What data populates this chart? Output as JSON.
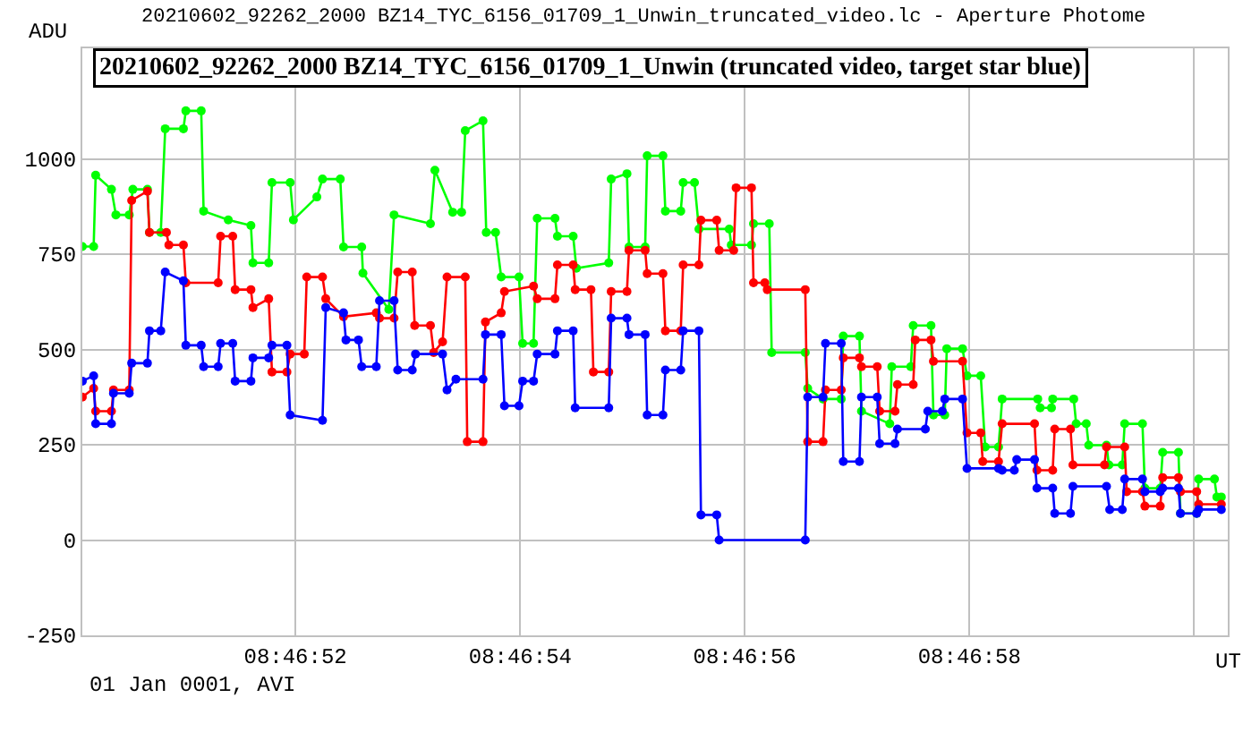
{
  "chart_data": {
    "type": "line",
    "title": "20210602_92262_2000 BZ14_TYC_6156_01709_1_Unwin (truncated video, target star blue)",
    "subtitle": "20210602_92262_2000 BZ14_TYC_6156_01709_1_Unwin_truncated_video.lc - Aperture Photome",
    "xlabel": "UT",
    "ylabel": "ADU",
    "annotations": [
      "01 Jan 0001, AVI"
    ],
    "xlim": [
      8.780584,
      8.783417
    ],
    "xticks": [
      {
        "value": 8.781111,
        "label": "08:46:52"
      },
      {
        "value": 8.781667,
        "label": "08:46:54"
      },
      {
        "value": 8.782222,
        "label": "08:46:56"
      },
      {
        "value": 8.782778,
        "label": "08:46:58"
      },
      {
        "value": 8.783333,
        "label": null
      }
    ],
    "ylim": [
      -250,
      1290
    ],
    "yticks": [
      -250,
      0,
      250,
      500,
      750,
      1000
    ],
    "grid": true,
    "marker": "circle",
    "line_style": "solid",
    "series": [
      {
        "color": "#00ff00",
        "x": [
          8.780584,
          8.780612,
          8.780617,
          8.780656,
          8.780667,
          8.7807,
          8.780709,
          8.780745,
          8.78075,
          8.780778,
          8.780789,
          8.780834,
          8.78084,
          8.780878,
          8.780884,
          8.780945,
          8.781001,
          8.781006,
          8.781045,
          8.781053,
          8.781098,
          8.781106,
          8.781164,
          8.781178,
          8.781222,
          8.78123,
          8.781275,
          8.781278,
          8.781342,
          8.781355,
          8.781445,
          8.781456,
          8.7815,
          8.781522,
          8.781531,
          8.781575,
          8.781583,
          8.781606,
          8.78162,
          8.781664,
          8.781673,
          8.7817,
          8.781709,
          8.781753,
          8.781759,
          8.781798,
          8.781806,
          8.781886,
          8.781892,
          8.781931,
          8.781936,
          8.781976,
          8.781981,
          8.78202,
          8.782026,
          8.782064,
          8.78207,
          8.782098,
          8.782109,
          8.782184,
          8.782189,
          8.782239,
          8.782244,
          8.782283,
          8.782289,
          8.782372,
          8.782378,
          8.782416,
          8.782461,
          8.782466,
          8.782506,
          8.782511,
          8.782581,
          8.782586,
          8.782633,
          8.782639,
          8.782683,
          8.782689,
          8.782717,
          8.782722,
          8.782761,
          8.782772,
          8.782806,
          8.782817,
          8.78285,
          8.782859,
          8.782947,
          8.782953,
          8.782981,
          8.782984,
          8.783036,
          8.783042,
          8.783067,
          8.783073,
          8.783117,
          8.783123,
          8.783156,
          8.783162,
          8.783206,
          8.783212,
          8.78325,
          8.783256,
          8.783295,
          8.7833,
          8.78334,
          8.783345,
          8.783384,
          8.78339,
          8.783401
        ],
        "values": [
          770,
          770,
          957,
          920,
          853,
          853,
          920,
          920,
          807,
          807,
          1079,
          1079,
          1126,
          1126,
          863,
          840,
          825,
          727,
          727,
          938,
          938,
          840,
          900,
          947,
          947,
          769,
          769,
          700,
          605,
          853,
          830,
          970,
          860,
          860,
          1074,
          1100,
          807,
          807,
          690,
          690,
          516,
          516,
          844,
          844,
          797,
          797,
          713,
          727,
          947,
          961,
          769,
          769,
          1008,
          1008,
          863,
          863,
          938,
          938,
          816,
          816,
          774,
          774,
          830,
          830,
          492,
          492,
          398,
          370,
          370,
          535,
          535,
          338,
          305,
          455,
          455,
          563,
          563,
          328,
          328,
          502,
          502,
          431,
          431,
          244,
          244,
          370,
          370,
          347,
          347,
          370,
          370,
          305,
          305,
          249,
          249,
          197,
          197,
          305,
          305,
          136,
          136,
          230,
          230,
          70,
          70,
          160,
          160,
          113,
          113
        ]
      },
      {
        "color": "#ff0000",
        "x": [
          8.780584,
          8.780612,
          8.780617,
          8.780656,
          8.780661,
          8.7807,
          8.780706,
          8.780745,
          8.78075,
          8.780792,
          8.780798,
          8.780834,
          8.78084,
          8.78092,
          8.780926,
          8.780956,
          8.780962,
          8.781001,
          8.781006,
          8.781045,
          8.781053,
          8.78109,
          8.781098,
          8.781133,
          8.781139,
          8.781178,
          8.781186,
          8.78123,
          8.781311,
          8.781319,
          8.781355,
          8.781364,
          8.7814,
          8.781406,
          8.781445,
          8.781453,
          8.781475,
          8.781486,
          8.781531,
          8.781536,
          8.781575,
          8.781581,
          8.78162,
          8.781628,
          8.7817,
          8.781709,
          8.781753,
          8.781759,
          8.781798,
          8.781803,
          8.781842,
          8.781848,
          8.781886,
          8.781892,
          8.781931,
          8.781936,
          8.781976,
          8.781981,
          8.78202,
          8.782026,
          8.782064,
          8.78207,
          8.782109,
          8.782114,
          8.782153,
          8.782159,
          8.782195,
          8.782201,
          8.782239,
          8.782244,
          8.782272,
          8.782278,
          8.782372,
          8.782378,
          8.782416,
          8.782422,
          8.782461,
          8.782466,
          8.782506,
          8.782511,
          8.78255,
          8.782556,
          8.782594,
          8.7826,
          8.782639,
          8.782644,
          8.782683,
          8.782689,
          8.782761,
          8.782772,
          8.782806,
          8.782811,
          8.78285,
          8.782859,
          8.782939,
          8.782945,
          8.782984,
          8.782989,
          8.783028,
          8.783034,
          8.783112,
          8.783117,
          8.783162,
          8.783167,
          8.783206,
          8.783212,
          8.78325,
          8.783256,
          8.783295,
          8.7833,
          8.78334,
          8.783345,
          8.783401
        ],
        "values": [
          375,
          398,
          338,
          338,
          394,
          394,
          891,
          915,
          807,
          807,
          774,
          774,
          675,
          675,
          797,
          797,
          657,
          657,
          610,
          633,
          441,
          441,
          488,
          488,
          690,
          690,
          633,
          586,
          596,
          582,
          582,
          703,
          703,
          563,
          563,
          492,
          520,
          690,
          690,
          258,
          258,
          572,
          596,
          652,
          666,
          633,
          633,
          722,
          722,
          657,
          657,
          441,
          441,
          652,
          652,
          760,
          760,
          699,
          699,
          549,
          549,
          722,
          722,
          839,
          839,
          760,
          760,
          924,
          924,
          675,
          675,
          657,
          657,
          258,
          258,
          394,
          394,
          478,
          478,
          455,
          455,
          338,
          338,
          408,
          408,
          525,
          525,
          469,
          469,
          281,
          281,
          206,
          206,
          305,
          305,
          183,
          183,
          291,
          291,
          197,
          197,
          244,
          244,
          127,
          127,
          89,
          89,
          164,
          164,
          127,
          127,
          94,
          94
        ]
      },
      {
        "color": "#0000ff",
        "x": [
          8.780584,
          8.780612,
          8.780617,
          8.780656,
          8.780661,
          8.7807,
          8.780706,
          8.780745,
          8.78075,
          8.780778,
          8.780789,
          8.780834,
          8.78084,
          8.780878,
          8.780884,
          8.78092,
          8.780926,
          8.780956,
          8.780962,
          8.781001,
          8.781006,
          8.781045,
          8.781053,
          8.78109,
          8.781098,
          8.781178,
          8.781186,
          8.78123,
          8.781236,
          8.781267,
          8.781275,
          8.781311,
          8.781319,
          8.781355,
          8.781364,
          8.7814,
          8.781408,
          8.781475,
          8.781486,
          8.781508,
          8.781575,
          8.781581,
          8.78162,
          8.781628,
          8.781664,
          8.781673,
          8.7817,
          8.781709,
          8.781753,
          8.781759,
          8.781798,
          8.781803,
          8.781886,
          8.781892,
          8.781931,
          8.781936,
          8.781976,
          8.781981,
          8.78202,
          8.782026,
          8.782064,
          8.78207,
          8.782109,
          8.782114,
          8.782153,
          8.782159,
          8.782372,
          8.782378,
          8.782416,
          8.782422,
          8.782461,
          8.782466,
          8.782506,
          8.782511,
          8.78255,
          8.782556,
          8.782594,
          8.7826,
          8.782669,
          8.782675,
          8.782711,
          8.782717,
          8.782761,
          8.782772,
          8.78285,
          8.782859,
          8.782889,
          8.782895,
          8.782939,
          8.782945,
          8.782984,
          8.782989,
          8.783028,
          8.783034,
          8.783117,
          8.783125,
          8.783156,
          8.783162,
          8.783206,
          8.783212,
          8.78325,
          8.783256,
          8.783295,
          8.7833,
          8.78334,
          8.783345,
          8.783401
        ],
        "values": [
          417,
          431,
          305,
          305,
          385,
          385,
          464,
          464,
          549,
          549,
          703,
          680,
          511,
          511,
          455,
          455,
          516,
          516,
          417,
          417,
          478,
          478,
          511,
          511,
          328,
          314,
          610,
          596,
          525,
          525,
          455,
          455,
          628,
          628,
          446,
          446,
          488,
          488,
          394,
          422,
          422,
          539,
          539,
          352,
          352,
          417,
          417,
          488,
          488,
          549,
          549,
          347,
          347,
          582,
          582,
          539,
          539,
          328,
          328,
          446,
          446,
          549,
          549,
          66,
          66,
          0,
          0,
          375,
          375,
          516,
          516,
          206,
          206,
          375,
          375,
          253,
          253,
          291,
          291,
          338,
          338,
          370,
          370,
          188,
          188,
          183,
          183,
          211,
          211,
          136,
          136,
          70,
          70,
          141,
          141,
          80,
          80,
          160,
          160,
          127,
          127,
          136,
          136,
          70,
          70,
          80,
          80
        ]
      }
    ]
  }
}
